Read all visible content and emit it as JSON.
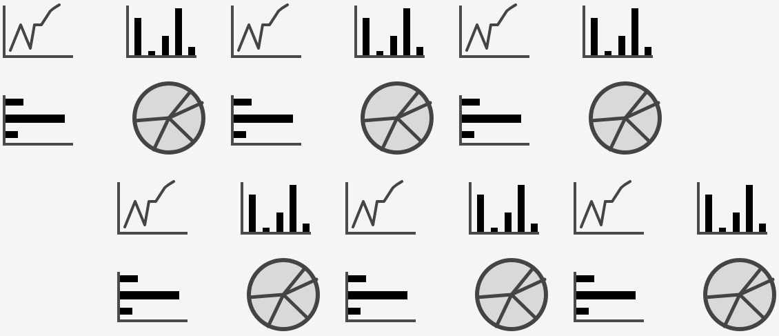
{
  "pattern": {
    "background_color": "#f5f5f5",
    "axis_color": "#4a4a4a",
    "line_color": "#444444",
    "bar_color": "#000000",
    "pie_fill_color": "#d9d9d9",
    "pie_stroke_color": "#444444",
    "tile_icons": [
      [
        "line-chart-icon",
        "bar-chart-icon"
      ],
      [
        "horizontal-bar-chart-icon",
        "pie-chart-icon"
      ]
    ]
  }
}
